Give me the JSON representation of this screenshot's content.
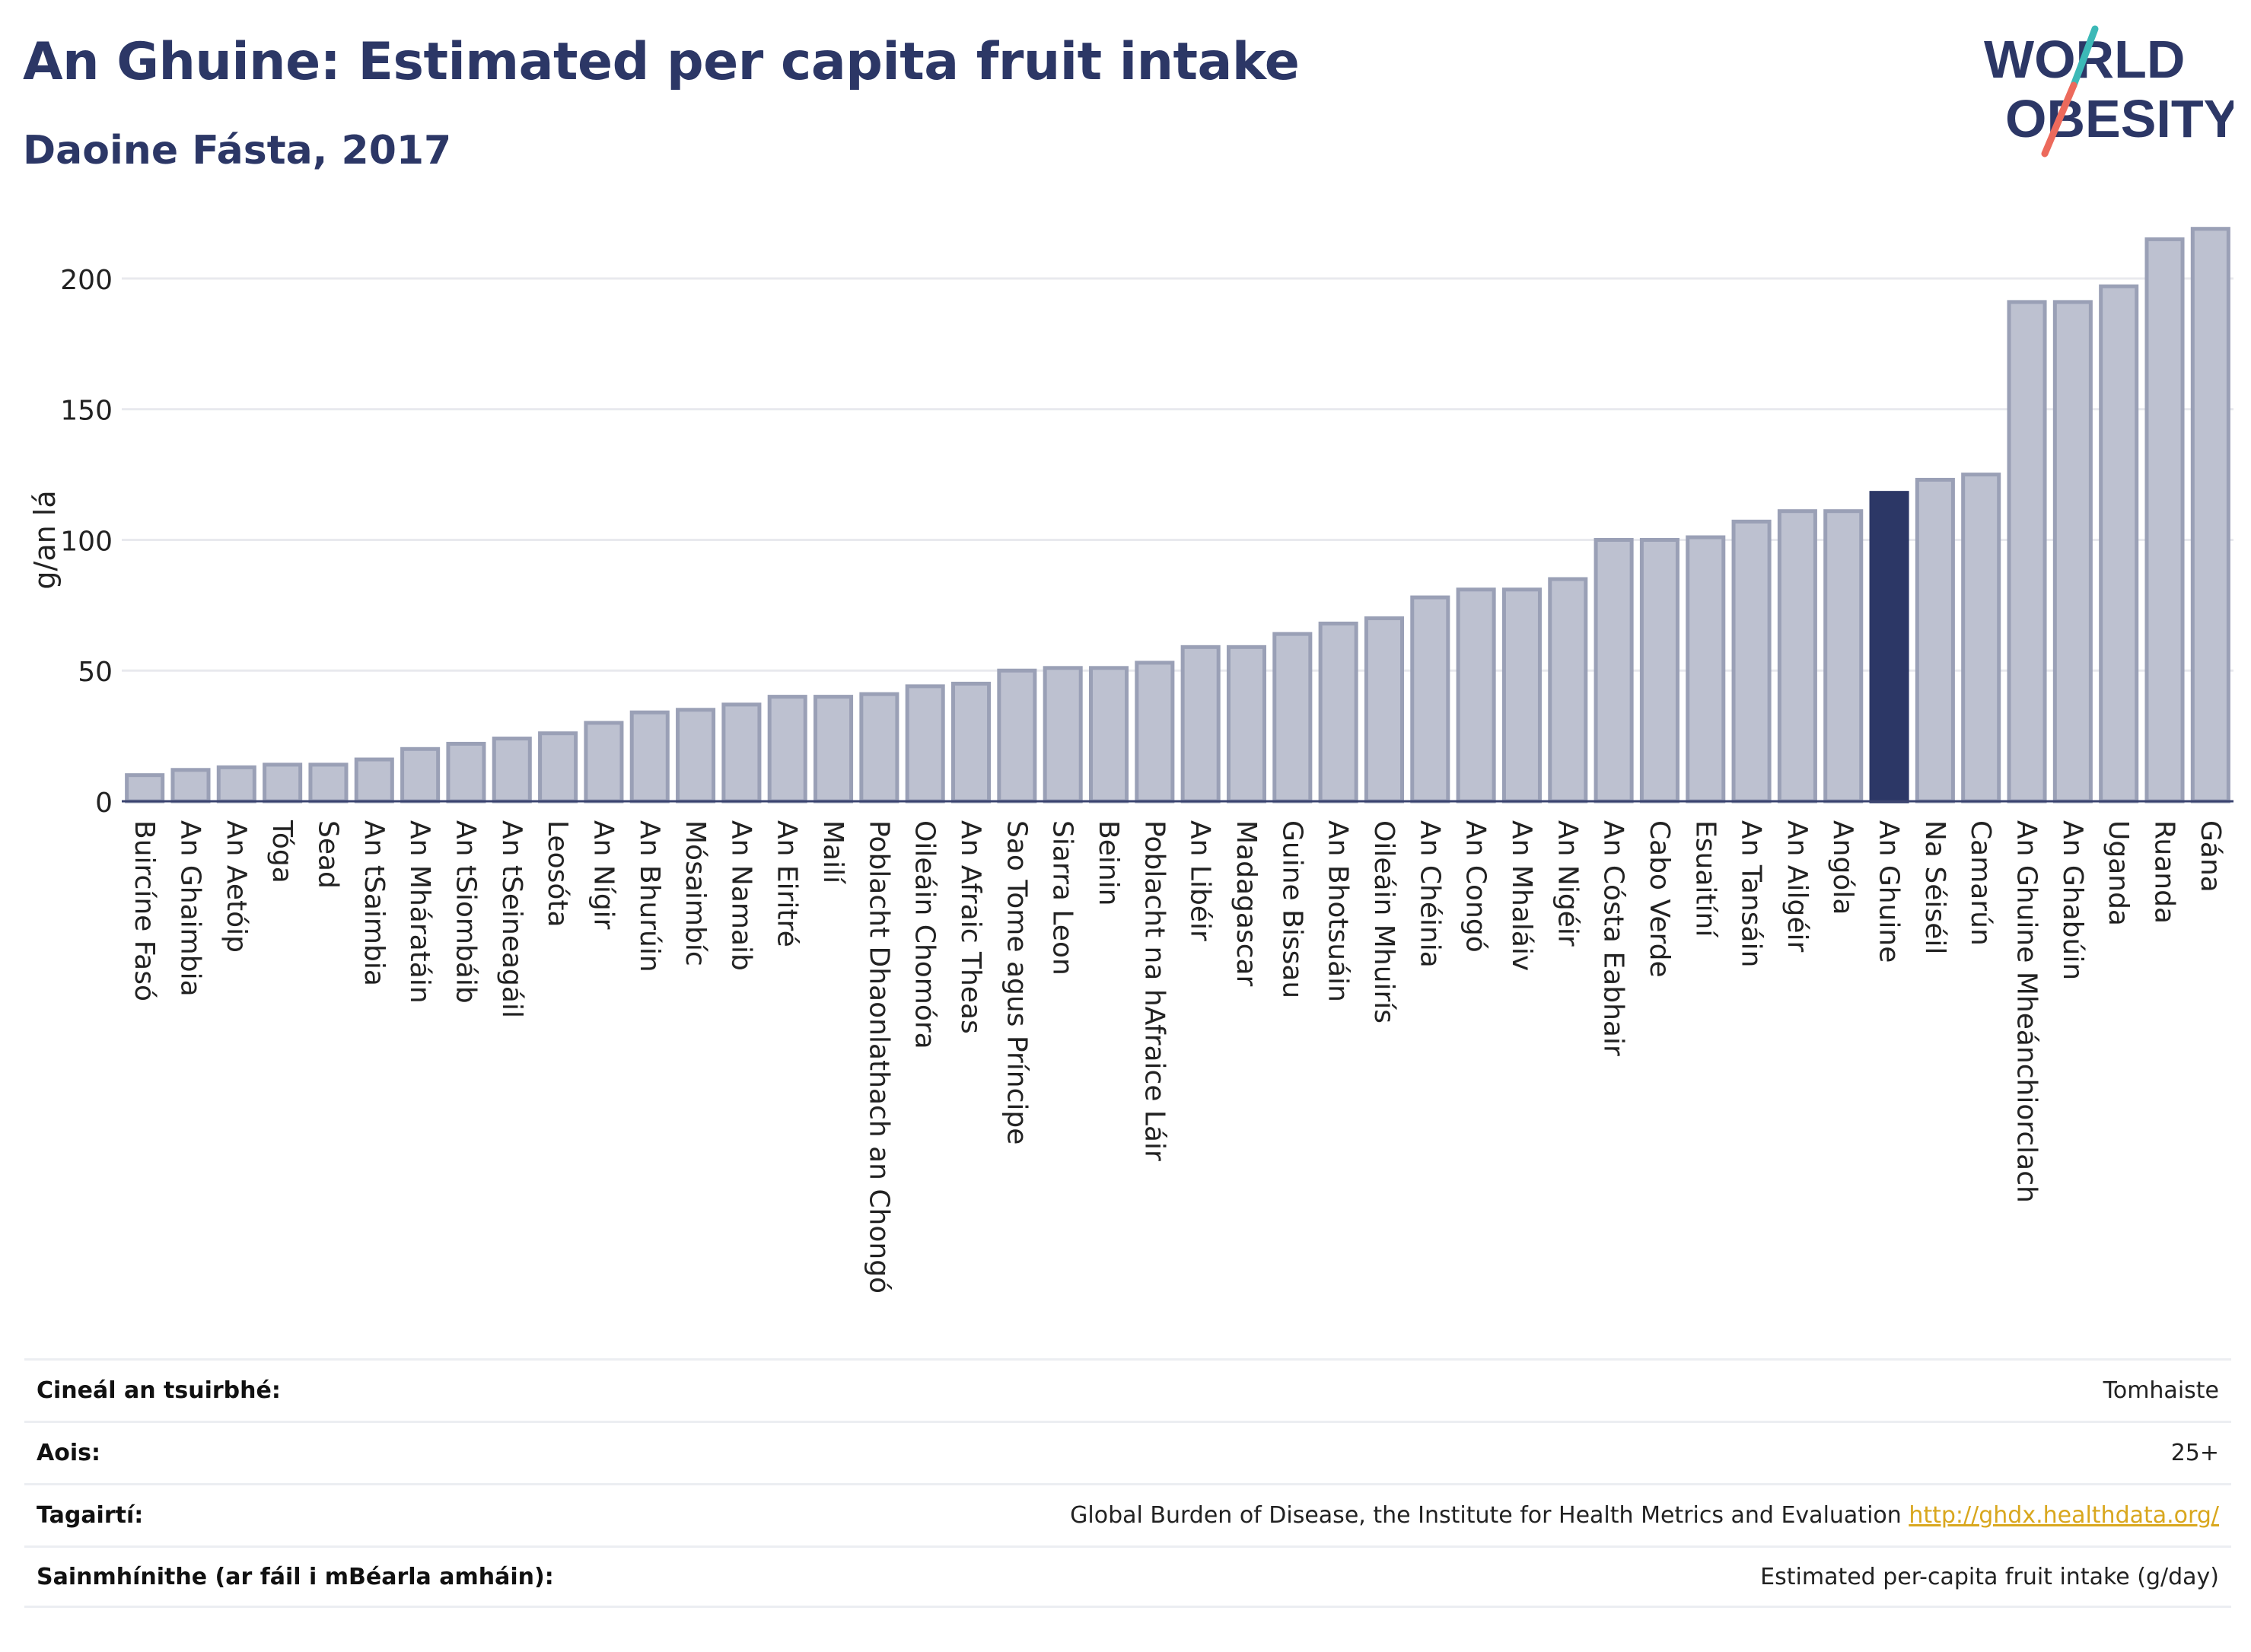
{
  "header": {
    "title": "An Ghuine: Estimated per capita fruit intake",
    "subtitle": "Daoine Fásta, 2017"
  },
  "logo": {
    "line1": "WORLD",
    "line2": "OBESITY",
    "name": "world-obesity-logo"
  },
  "colors": {
    "bar": "#bdc1d0",
    "bar_stroke": "#9aa0b6",
    "highlight": "#2c3766",
    "grid": "#e8e9ee",
    "axis": "#3b4470",
    "title": "#2c3766",
    "logo_slash_teal": "#3cb9b7",
    "logo_slash_coral": "#ec6a5c",
    "link": "#d9a71e"
  },
  "chart_data": {
    "type": "bar",
    "title": "An Ghuine: Estimated per capita fruit intake",
    "subtitle": "Daoine Fásta, 2017",
    "xlabel": "",
    "ylabel": "g/an lá",
    "ylim": [
      0,
      225
    ],
    "yticks": [
      0,
      50,
      100,
      150,
      200
    ],
    "grid": true,
    "highlight": "An Ghuine",
    "categories": [
      "Buircíne Fasó",
      "An Ghaimbia",
      "An Aetóip",
      "Tóga",
      "Sead",
      "An tSaimbia",
      "An Mháratáin",
      "An tSiombáib",
      "An tSeineagáil",
      "Leosóta",
      "An Nígir",
      "An Bhurúin",
      "Mósaimbíc",
      "An Namaib",
      "An Eiritré",
      "Mailí",
      "Poblacht Dhaonlathach an Chongó",
      "Oileáin Chomóra",
      "An Afraic Theas",
      "Sao Tome agus Príncipe",
      "Siarra Leon",
      "Beinin",
      "Poblacht na hAfraice Láir",
      "An Libéir",
      "Madagascar",
      "Guine Bissau",
      "An Bhotsuáin",
      "Oileáin Mhuirís",
      "An Chéinia",
      "An Congó",
      "An Mhaláiv",
      "An Nigéir",
      "An Cósta Eabhair",
      "Cabo Verde",
      "Esuaitíní",
      "An Tansáin",
      "An Ailgéir",
      "Angóla",
      "An Ghuine",
      "Na Séiséil",
      "Camarún",
      "An Ghuine Mheánchiorclach",
      "An Ghabúin",
      "Uganda",
      "Ruanda",
      "Gána"
    ],
    "values": [
      10,
      12,
      13,
      14,
      14,
      16,
      20,
      22,
      24,
      26,
      30,
      34,
      35,
      37,
      40,
      40,
      41,
      44,
      45,
      50,
      51,
      51,
      53,
      59,
      59,
      64,
      68,
      70,
      78,
      81,
      81,
      85,
      100,
      100,
      101,
      107,
      111,
      111,
      118,
      123,
      125,
      191,
      191,
      197,
      215,
      219
    ]
  },
  "meta": {
    "rows": [
      {
        "label": "Cineál an tsuirbhé:",
        "value": "Tomhaiste"
      },
      {
        "label": "Aois:",
        "value": "25+"
      },
      {
        "label": "Tagairtí:",
        "value": "Global Burden of Disease, the Institute for Health Metrics and Evaluation ",
        "link": "http://ghdx.healthdata.org/"
      },
      {
        "label": "Sainmhínithe (ar fáil i mBéarla amháin):",
        "value": "Estimated per-capita fruit intake (g/day)"
      }
    ]
  }
}
